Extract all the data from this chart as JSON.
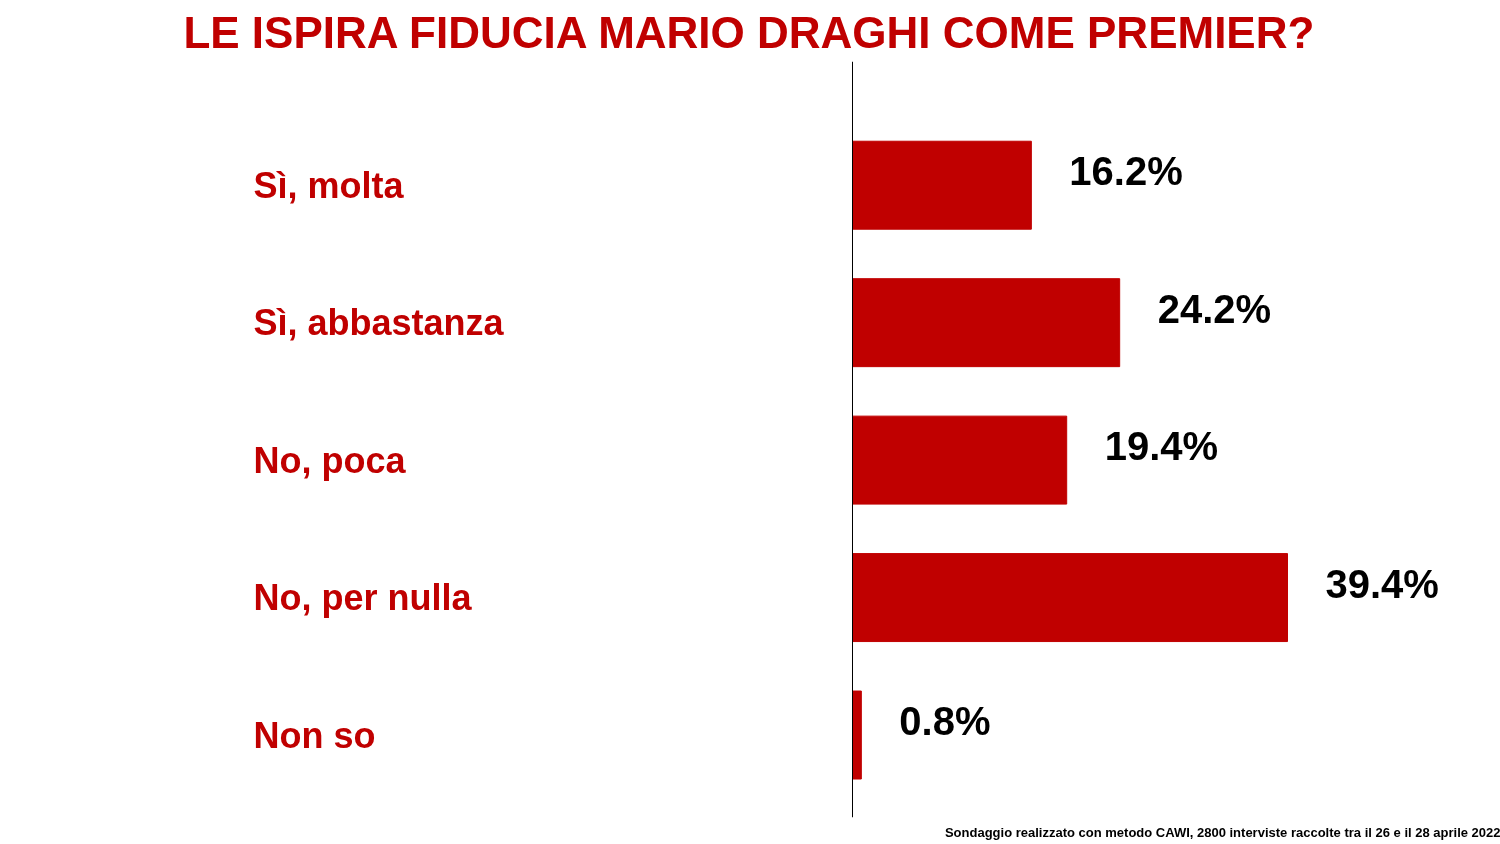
{
  "chart_data": {
    "type": "bar",
    "orientation": "horizontal",
    "title": "LE ISPIRA FIDUCIA MARIO DRAGHI COME PREMIER?",
    "categories": [
      "Sì, molta",
      "Sì, abbastanza",
      "No, poca",
      "No, per nulla",
      "Non so"
    ],
    "values": [
      16.2,
      24.2,
      19.4,
      39.4,
      0.8
    ],
    "value_labels": [
      "16.2%",
      "24.2%",
      "19.4%",
      "39.4%",
      "0.8%"
    ],
    "color": "#c00000",
    "annotations": [
      "Sondaggio realizzato con metodo CAWI, 2800 interviste raccolte tra il 26 e il 28 aprile 2022"
    ]
  }
}
